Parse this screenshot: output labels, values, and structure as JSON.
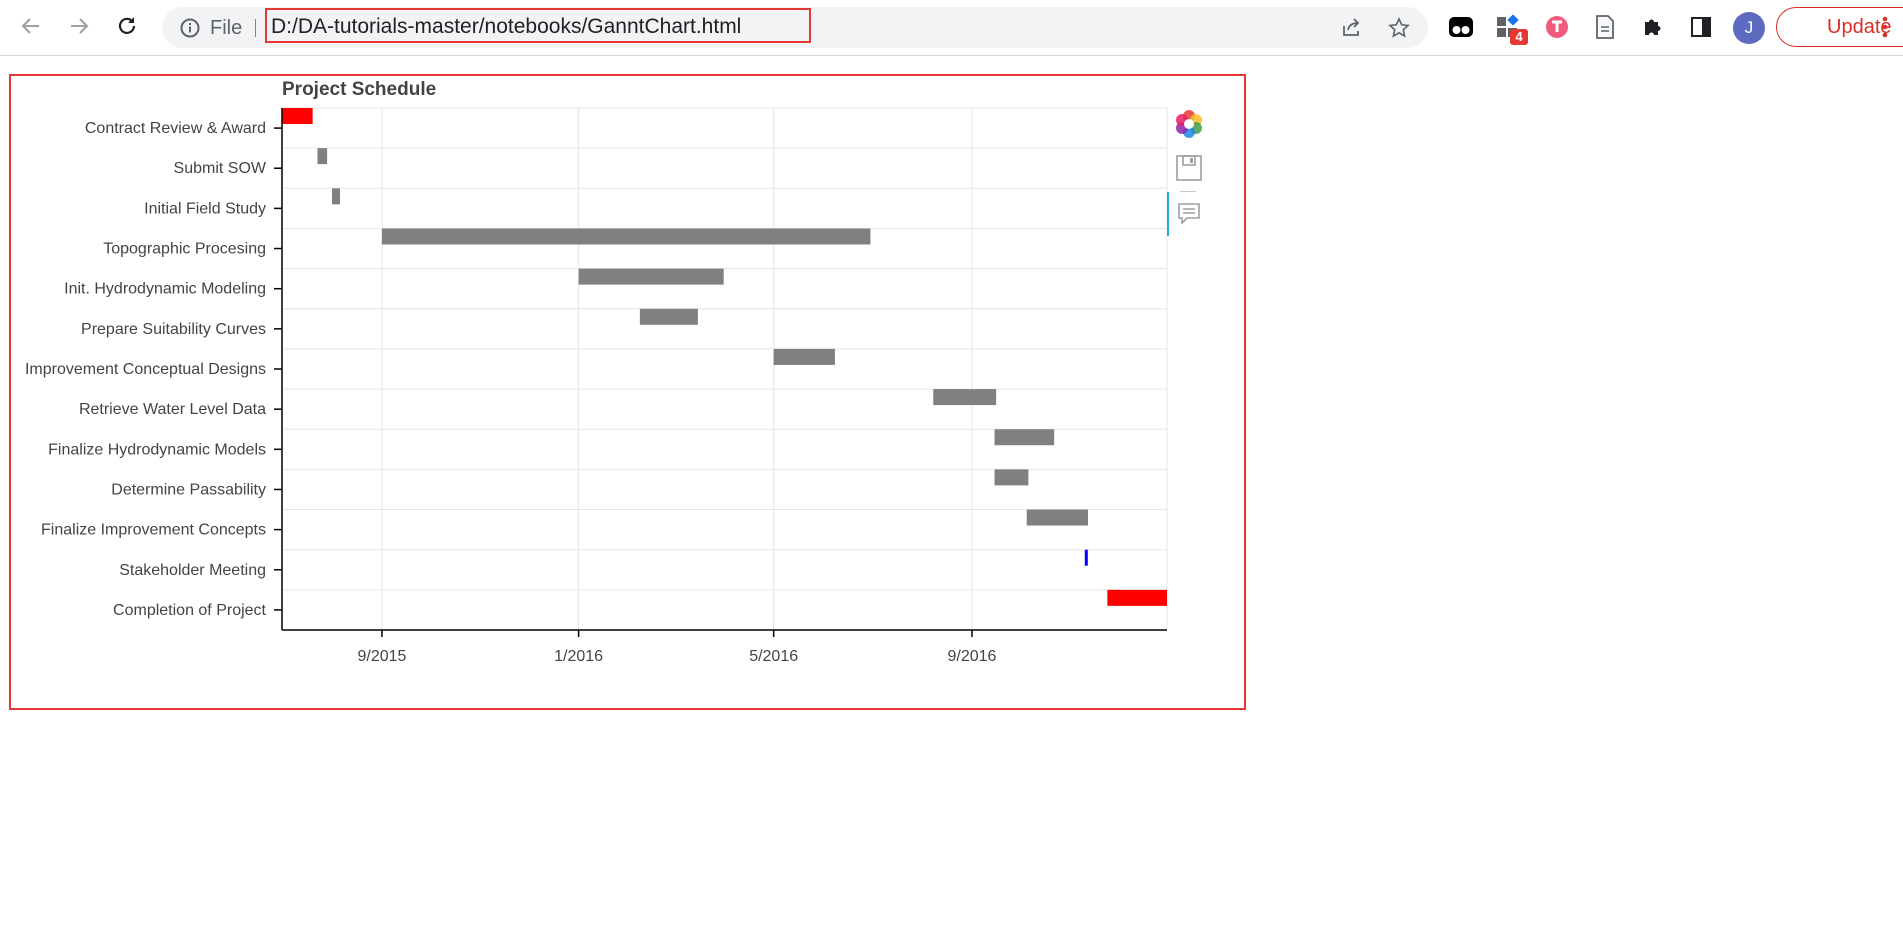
{
  "browser": {
    "file_label": "File",
    "url": "D:/DA-tutorials-master/notebooks/GanntChart.html",
    "extension_badge": "4",
    "avatar_letter": "J",
    "update_label": "Update"
  },
  "chart_data": {
    "type": "gantt",
    "title": "Project Schedule",
    "tasks": [
      {
        "name": "Contract Review & Award",
        "start": "2015-07-01",
        "end": "2015-07-20",
        "color": "#ff0000"
      },
      {
        "name": "Submit SOW",
        "start": "2015-07-23",
        "end": "2015-07-29",
        "color": "#808080"
      },
      {
        "name": "Initial Field Study",
        "start": "2015-08-01",
        "end": "2015-08-06",
        "color": "#808080"
      },
      {
        "name": "Topographic Procesing",
        "start": "2015-09-01",
        "end": "2016-06-30",
        "color": "#808080"
      },
      {
        "name": "Init. Hydrodynamic Modeling",
        "start": "2016-01-01",
        "end": "2016-03-31",
        "color": "#808080"
      },
      {
        "name": "Prepare Suitability Curves",
        "start": "2016-02-08",
        "end": "2016-03-15",
        "color": "#808080"
      },
      {
        "name": "Improvement Conceptual Designs",
        "start": "2016-05-01",
        "end": "2016-06-08",
        "color": "#808080"
      },
      {
        "name": "Retrieve Water Level Data",
        "start": "2016-08-08",
        "end": "2016-09-16",
        "color": "#808080"
      },
      {
        "name": "Finalize Hydrodynamic Models",
        "start": "2016-09-15",
        "end": "2016-10-22",
        "color": "#808080"
      },
      {
        "name": "Determine Passability",
        "start": "2016-09-15",
        "end": "2016-10-06",
        "color": "#808080"
      },
      {
        "name": "Finalize Improvement Concepts",
        "start": "2016-10-05",
        "end": "2016-11-12",
        "color": "#808080"
      },
      {
        "name": "Stakeholder Meeting",
        "start": "2016-11-10",
        "end": "2016-11-11",
        "color": "#0000ff"
      },
      {
        "name": "Completion of Project",
        "start": "2016-11-24",
        "end": "2016-12-31",
        "color": "#ff0000"
      }
    ],
    "x_range": [
      "2015-07-01",
      "2016-12-31"
    ],
    "xticks": [
      {
        "label": "9/2015",
        "date": "2015-09-01"
      },
      {
        "label": "1/2016",
        "date": "2016-01-01"
      },
      {
        "label": "5/2016",
        "date": "2016-05-01"
      },
      {
        "label": "9/2016",
        "date": "2016-09-01"
      }
    ],
    "grid": true
  }
}
